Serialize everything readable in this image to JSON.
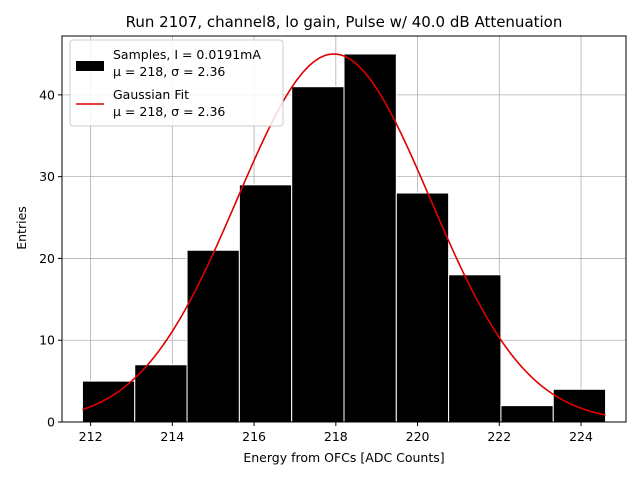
{
  "chart_data": {
    "type": "bar",
    "title": "Run 2107, channel8, lo gain, Pulse w/ 40.0 dB Attenuation",
    "xlabel": "Energy from OFCs [ADC Counts]",
    "ylabel": "Entries",
    "xlim": [
      211.3,
      225.1
    ],
    "ylim": [
      0,
      47.2
    ],
    "grid": true,
    "legend_position": "top-left",
    "xticks": [
      212,
      214,
      216,
      218,
      220,
      222,
      224
    ],
    "yticks": [
      0,
      10,
      20,
      30,
      40
    ],
    "histogram": {
      "name": "Samples, I = 0.0191mA",
      "stats": "μ = 218, σ = 2.36",
      "color": "#000000",
      "bin_edges": [
        211.8,
        213.08,
        214.36,
        215.64,
        216.92,
        218.2,
        219.48,
        220.76,
        222.04,
        223.32,
        224.6
      ],
      "counts": [
        5,
        7,
        21,
        29,
        41,
        45,
        28,
        18,
        2,
        4
      ]
    },
    "fit": {
      "name": "Gaussian Fit",
      "stats": "μ = 218, σ = 2.36",
      "color": "#e00000",
      "mu": 217.95,
      "sigma": 2.36,
      "amplitude": 45.0,
      "x_range": [
        211.8,
        224.6
      ]
    }
  }
}
